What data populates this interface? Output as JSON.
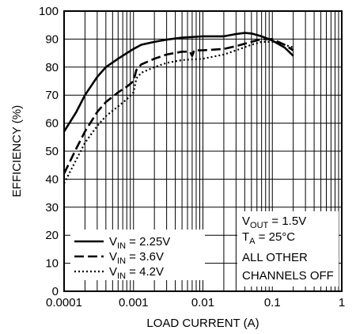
{
  "chart_data": {
    "type": "line",
    "xscale": "log",
    "xlabel": "LOAD CURRENT (A)",
    "ylabel": "EFFICIENCY (%)",
    "xlim": [
      0.0001,
      1
    ],
    "ylim": [
      0,
      100
    ],
    "xticks": [
      0.0001,
      0.001,
      0.01,
      0.1,
      1
    ],
    "xtick_labels": [
      "0.0001",
      "0.001",
      "0.01",
      "0.1",
      "1"
    ],
    "yticks": [
      0,
      10,
      20,
      30,
      40,
      50,
      60,
      70,
      80,
      90,
      100
    ],
    "grid": true,
    "legend_position": "bottom-left",
    "series": [
      {
        "name": "V_IN = 2.25V",
        "label_main": "V",
        "label_sub": "IN",
        "label_rest": " = 2.25V",
        "style": "solid",
        "x": [
          0.0001,
          0.00015,
          0.0002,
          0.0003,
          0.0004,
          0.0006,
          0.0008,
          0.001,
          0.0013,
          0.002,
          0.003,
          0.005,
          0.01,
          0.02,
          0.03,
          0.04,
          0.05,
          0.07,
          0.1,
          0.15,
          0.2
        ],
        "y": [
          57,
          64,
          70,
          76.5,
          80,
          83,
          85,
          86.5,
          88,
          89,
          89.8,
          90.5,
          91,
          91,
          91.8,
          92.2,
          92,
          91,
          89.5,
          87,
          84
        ]
      },
      {
        "name": "V_IN = 3.6V",
        "label_main": "V",
        "label_sub": "IN",
        "label_rest": " = 3.6V",
        "style": "dashed",
        "x": [
          0.0001,
          0.00015,
          0.0002,
          0.0003,
          0.0004,
          0.0006,
          0.0008,
          0.001,
          0.0011,
          0.0013,
          0.002,
          0.003,
          0.005,
          0.0065,
          0.007,
          0.0075,
          0.01,
          0.02,
          0.03,
          0.05,
          0.07,
          0.1,
          0.15,
          0.2
        ],
        "y": [
          42,
          51,
          57,
          64,
          67.5,
          71,
          73,
          75,
          79,
          81,
          83,
          84.5,
          85.5,
          85.5,
          84,
          86,
          86,
          86.5,
          87.5,
          89,
          90,
          90,
          88,
          86
        ]
      },
      {
        "name": "V_IN = 4.2V",
        "label_main": "V",
        "label_sub": "IN",
        "label_rest": " = 4.2V",
        "style": "dotted",
        "x": [
          0.0001,
          0.00015,
          0.0002,
          0.0003,
          0.0004,
          0.0006,
          0.0008,
          0.001,
          0.0011,
          0.0013,
          0.002,
          0.003,
          0.005,
          0.01,
          0.02,
          0.03,
          0.05,
          0.07,
          0.1,
          0.15,
          0.2
        ],
        "y": [
          38.5,
          47,
          53,
          59,
          62.5,
          66,
          68.5,
          71,
          76,
          78,
          80,
          81.5,
          82.5,
          83,
          84.5,
          86,
          88,
          89,
          89,
          88,
          87
        ]
      }
    ],
    "annotation": {
      "line1_main": "V",
      "line1_sub": "OUT",
      "line1_rest": " = 1.5V",
      "line2_main": "T",
      "line2_sub": "A",
      "line2_rest": " = 25°C",
      "line3": "ALL OTHER",
      "line4": "CHANNELS OFF"
    }
  }
}
